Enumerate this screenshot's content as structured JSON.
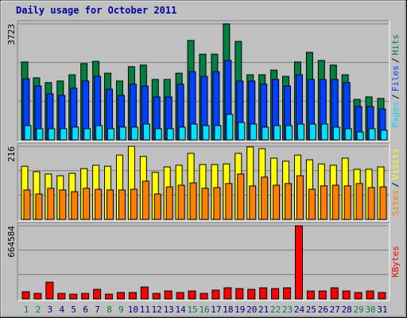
{
  "chart_data": [
    {
      "type": "bar",
      "title": "Daily usage for October 2011",
      "categories": [
        "1",
        "2",
        "3",
        "4",
        "5",
        "6",
        "7",
        "8",
        "9",
        "10",
        "11",
        "12",
        "13",
        "14",
        "15",
        "16",
        "17",
        "18",
        "19",
        "20",
        "21",
        "22",
        "23",
        "24",
        "25",
        "26",
        "27",
        "28",
        "29",
        "30",
        "31"
      ],
      "category_colors": [
        "#008040",
        "#008040",
        "#000080",
        "#000080",
        "#000080",
        "#000080",
        "#000080",
        "#008040",
        "#008040",
        "#000080",
        "#000080",
        "#000080",
        "#000080",
        "#000080",
        "#008040",
        "#008040",
        "#000080",
        "#000080",
        "#000080",
        "#000080",
        "#000080",
        "#008040",
        "#008040",
        "#000080",
        "#000080",
        "#000080",
        "#000080",
        "#000080",
        "#008040",
        "#008040",
        "#000080"
      ],
      "legend_separator": "/",
      "series": [
        {
          "name": "Hits",
          "color": "#008040",
          "values": [
            2500,
            1990,
            1840,
            1890,
            2090,
            2450,
            2520,
            2140,
            1890,
            2350,
            2400,
            1940,
            1940,
            2140,
            3190,
            2750,
            2750,
            3723,
            3160,
            2090,
            2090,
            2240,
            2040,
            2500,
            2810,
            2550,
            2400,
            2090,
            1300,
            1380,
            1330
          ]
        },
        {
          "name": "Files",
          "color": "#0040ff",
          "values": [
            1960,
            1730,
            1480,
            1430,
            1660,
            1890,
            2040,
            1630,
            1430,
            1790,
            1730,
            1380,
            1380,
            1790,
            2190,
            2040,
            2190,
            2550,
            1890,
            1890,
            1790,
            1940,
            1730,
            2090,
            1940,
            1940,
            1940,
            1840,
            1070,
            1070,
            990
          ]
        },
        {
          "name": "Pages",
          "color": "#00e0ff",
          "values": [
            460,
            360,
            360,
            360,
            410,
            360,
            460,
            360,
            410,
            410,
            510,
            360,
            360,
            410,
            510,
            460,
            460,
            820,
            560,
            510,
            410,
            460,
            460,
            510,
            510,
            510,
            410,
            360,
            255,
            360,
            310
          ]
        }
      ],
      "ylim": [
        0,
        3723
      ],
      "yticks": [
        3723
      ]
    },
    {
      "type": "bar",
      "series": [
        {
          "name": "Visits",
          "color": "#ffff00",
          "values": [
            157,
            141,
            134,
            129,
            136,
            150,
            160,
            157,
            190,
            216,
            186,
            139,
            155,
            160,
            195,
            162,
            162,
            164,
            195,
            214,
            209,
            181,
            172,
            190,
            176,
            164,
            160,
            181,
            148,
            148,
            155
          ]
        },
        {
          "name": "Sites",
          "color": "#ff8000",
          "values": [
            87,
            75,
            92,
            87,
            82,
            92,
            89,
            87,
            87,
            89,
            113,
            75,
            96,
            101,
            108,
            92,
            94,
            106,
            134,
            99,
            125,
            101,
            106,
            129,
            89,
            99,
            101,
            99,
            106,
            94,
            96
          ]
        }
      ],
      "ylim": [
        0,
        216
      ],
      "yticks": [
        216
      ]
    },
    {
      "type": "bar",
      "series": [
        {
          "name": "KBytes",
          "color": "#ff0000",
          "values": [
            65000,
            50000,
            152000,
            50000,
            43000,
            50000,
            87000,
            43000,
            58000,
            58000,
            108000,
            50000,
            72000,
            58000,
            72000,
            50000,
            80000,
            101000,
            94000,
            87000,
            101000,
            94000,
            101000,
            664584,
            72000,
            72000,
            101000,
            72000,
            58000,
            72000,
            58000
          ]
        }
      ],
      "ylim": [
        0,
        664584
      ],
      "yticks": [
        664584
      ]
    }
  ]
}
